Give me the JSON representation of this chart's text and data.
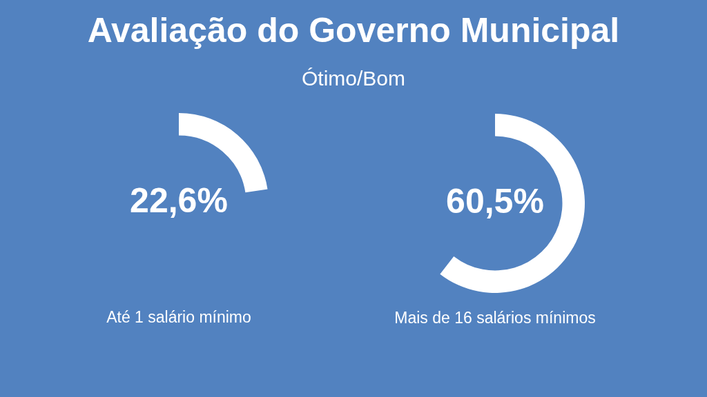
{
  "chart_data": [
    {
      "type": "other",
      "title": "Avaliação do Governo Municipal",
      "subtitle": "Ótimo/Bom"
    },
    {
      "type": "pie",
      "categories": [
        null
      ],
      "values": [
        22.6
      ],
      "colors": [
        "#ffffff"
      ],
      "value_labels": [
        "22,6%"
      ],
      "xlabel": "Até 1 salário mínimo"
    },
    {
      "type": "pie",
      "categories": [
        null
      ],
      "values": [
        60.5
      ],
      "colors": [
        "#ffffff"
      ],
      "value_labels": [
        "60,5%"
      ],
      "xlabel": "Mais de 16 salários mínimos"
    }
  ]
}
